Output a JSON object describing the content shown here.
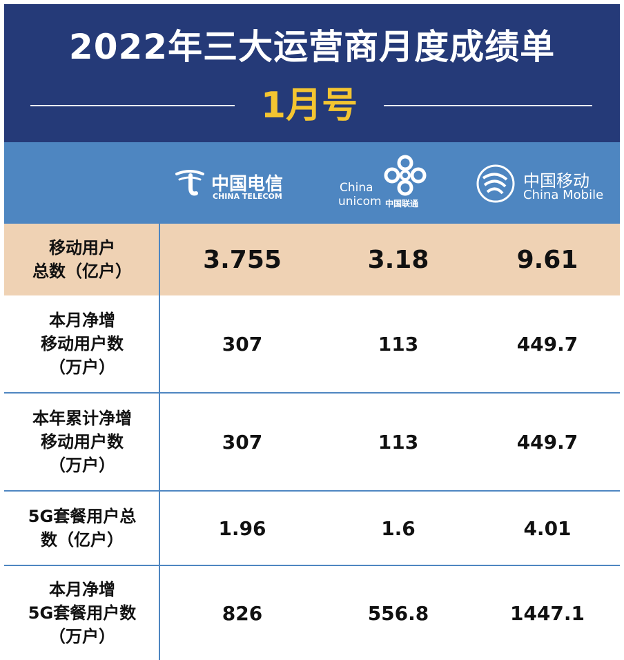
{
  "header": {
    "title": "2022年三大运营商月度成绩单",
    "subtitle": "1月号"
  },
  "logos": {
    "telecom": {
      "name_cn": "中国电信",
      "name_en": "CHINA TELECOM",
      "icon": "china-telecom-logo"
    },
    "unicom": {
      "name_en_line1": "China",
      "name_en_line2": "unicom",
      "name_cn": "中国联通",
      "icon": "china-unicom-knot-logo"
    },
    "mobile": {
      "name_cn": "中国移动",
      "name_en": "China Mobile",
      "icon": "china-mobile-logo"
    }
  },
  "colors": {
    "header_bg": "#253a78",
    "logo_row_bg": "#4e86c1",
    "highlight_row_bg": "#efd2b4",
    "subtitle_color": "#f4c531"
  },
  "table": {
    "rows": [
      {
        "label": "移动用户\n总数（亿户）",
        "values": [
          "3.755",
          "3.18",
          "9.61"
        ]
      },
      {
        "label": "本月净增\n移动用户数\n（万户）",
        "values": [
          "307",
          "113",
          "449.7"
        ]
      },
      {
        "label": "本年累计净增\n移动用户数\n（万户）",
        "values": [
          "307",
          "113",
          "449.7"
        ]
      },
      {
        "label": "5G套餐用户总\n数（亿户）",
        "values": [
          "1.96",
          "1.6",
          "4.01"
        ]
      },
      {
        "label": "本月净增\n5G套餐用户数\n（万户）",
        "values": [
          "826",
          "556.8",
          "1447.1"
        ]
      }
    ]
  }
}
